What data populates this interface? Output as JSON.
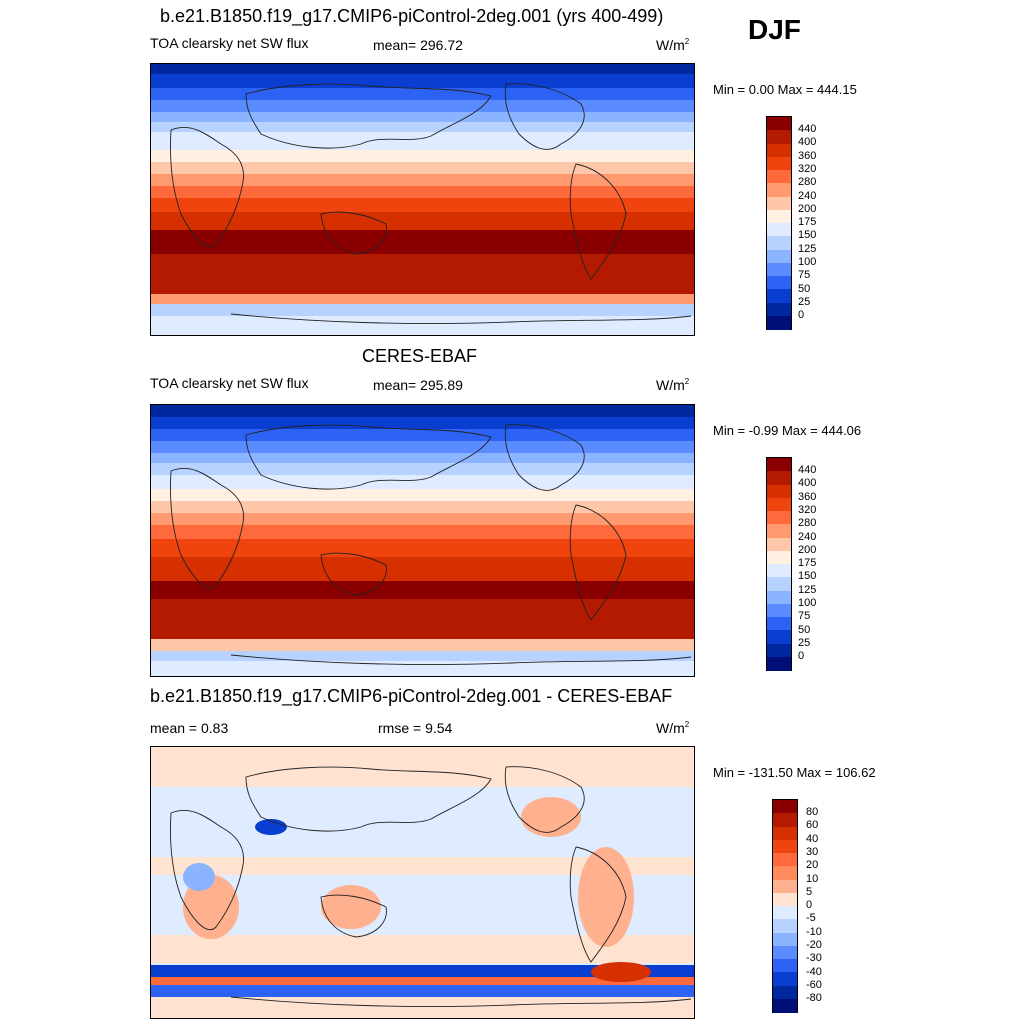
{
  "season": "DJF",
  "panels": [
    {
      "title": "b.e21.B1850.f19_g17.CMIP6-piControl-2deg.001 (yrs 400-499)",
      "left_label": "TOA clearsky net SW flux",
      "center_label": "mean= 296.72",
      "units": "W/m",
      "units_sup": "2",
      "minmax": "Min =   0.00 Max = 444.15",
      "colorbar_ticks": [
        "440",
        "400",
        "360",
        "320",
        "280",
        "240",
        "200",
        "175",
        "150",
        "125",
        "100",
        "75",
        "50",
        "25",
        "0"
      ],
      "colors": [
        "#8a0000",
        "#b31a00",
        "#d62f00",
        "#f0440f",
        "#ff6a3d",
        "#ff9a70",
        "#ffc7aa",
        "#fff0e2",
        "#dfebff",
        "#b7d2ff",
        "#8ab4ff",
        "#5a8cff",
        "#2d63f5",
        "#0a3ed0",
        "#00289e",
        "#000e78"
      ]
    },
    {
      "title": "CERES-EBAF",
      "left_label": "TOA clearsky net SW flux",
      "center_label": "mean= 295.89",
      "units": "W/m",
      "units_sup": "2",
      "minmax": "Min =  -0.99 Max = 444.06",
      "colorbar_ticks": [
        "440",
        "400",
        "360",
        "320",
        "280",
        "240",
        "200",
        "175",
        "150",
        "125",
        "100",
        "75",
        "50",
        "25",
        "0"
      ],
      "colors": [
        "#8a0000",
        "#b31a00",
        "#d62f00",
        "#f0440f",
        "#ff6a3d",
        "#ff9a70",
        "#ffc7aa",
        "#fff0e2",
        "#dfebff",
        "#b7d2ff",
        "#8ab4ff",
        "#5a8cff",
        "#2d63f5",
        "#0a3ed0",
        "#00289e",
        "#000e78"
      ]
    },
    {
      "title": "b.e21.B1850.f19_g17.CMIP6-piControl-2deg.001 - CERES-EBAF",
      "left_label": "mean =   0.83",
      "center_label": "rmse =    9.54",
      "units": "W/m",
      "units_sup": "2",
      "minmax": "Min = -131.50 Max = 106.62",
      "colorbar_ticks": [
        "80",
        "60",
        "40",
        "30",
        "20",
        "10",
        "5",
        "0",
        "-5",
        "-10",
        "-20",
        "-30",
        "-40",
        "-60",
        "-80"
      ],
      "colors": [
        "#8a0000",
        "#b31a00",
        "#d62f00",
        "#f0440f",
        "#ff6a3d",
        "#ff8a5c",
        "#ffb08e",
        "#ffe2d0",
        "#dfebff",
        "#b7d2ff",
        "#8ab4ff",
        "#5a8cff",
        "#2d63f5",
        "#0a3ed0",
        "#00289e",
        "#000e78"
      ]
    }
  ]
}
